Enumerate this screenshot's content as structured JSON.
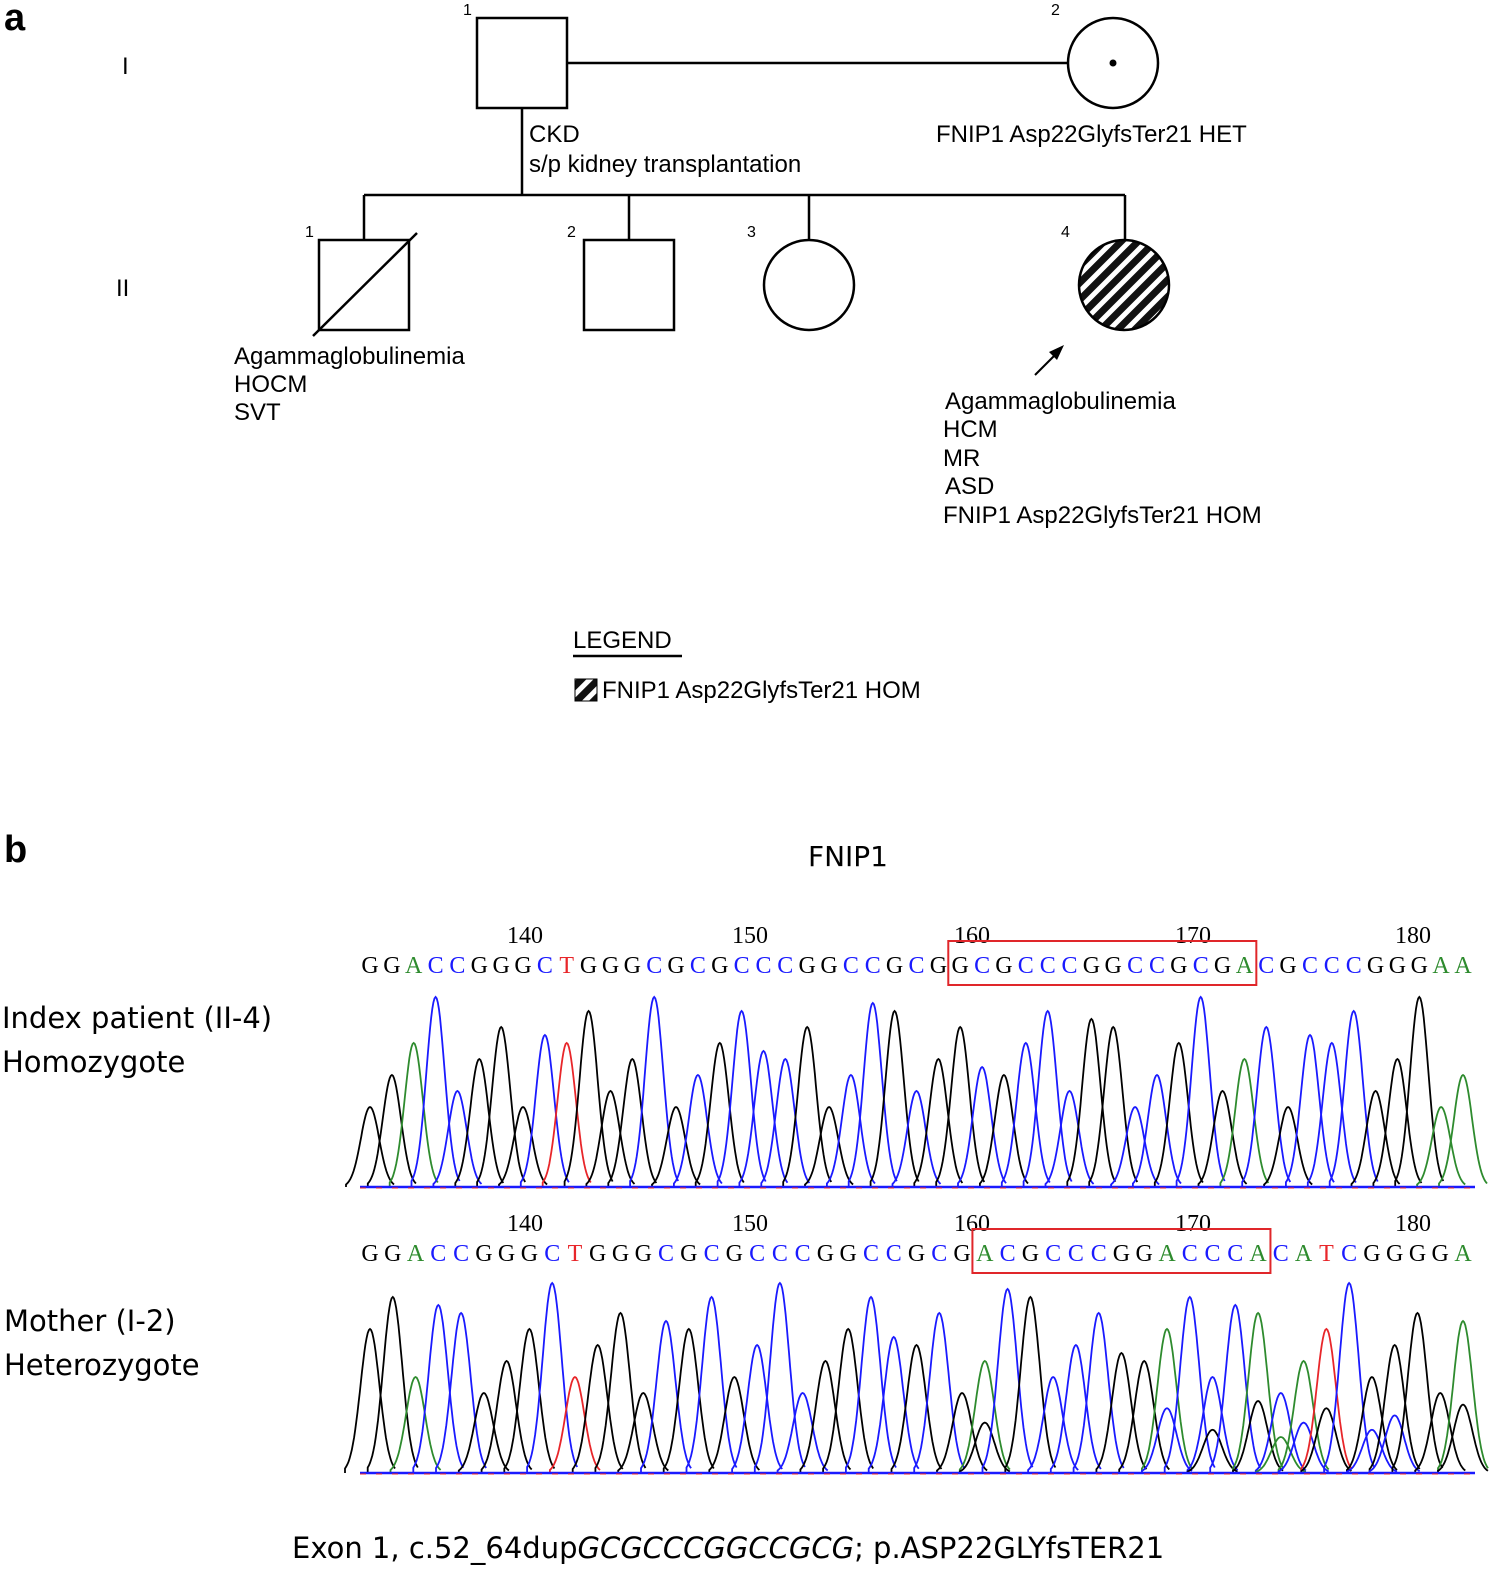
{
  "panel_a": {
    "label": "a",
    "generations": [
      "I",
      "II"
    ],
    "individuals": {
      "I1": {
        "number": "1",
        "notes": [
          "CKD",
          "s/p kidney transplantation"
        ]
      },
      "I2": {
        "number": "2",
        "notes": [
          "FNIP1 Asp22GlyfsTer21 HET"
        ]
      },
      "II1": {
        "number": "1",
        "notes": [
          "Agammaglobulinemia",
          "HOCM",
          "SVT"
        ]
      },
      "II2": {
        "number": "2"
      },
      "II3": {
        "number": "3"
      },
      "II4": {
        "number": "4",
        "notes": [
          "Agammaglobulinemia",
          "HCM",
          "MR",
          "ASD",
          "FNIP1 Asp22GlyfsTer21 HOM"
        ]
      }
    },
    "legend": {
      "title": "LEGEND",
      "item": "FNIP1 Asp22GlyfsTer21 HOM"
    }
  },
  "panel_b": {
    "label": "b",
    "gene": "FNIP1",
    "colors": {
      "A": "#2e8b2e",
      "C": "#1a1aff",
      "G": "#000000",
      "T": "#e8262a",
      "box": "#e0262a"
    },
    "tracks": [
      {
        "title": "Index patient (II-4)",
        "subtitle": "Homozygote",
        "positions": [
          "140",
          "150",
          "160",
          "170",
          "180"
        ],
        "sequence": "GGACCGGGCTGGGCGCGCCCGGCCGCGGCGCCCGGCCGCGACGCCCGGGAA",
        "box_start": 27,
        "box_end": 40
      },
      {
        "title": "Mother (I-2)",
        "subtitle": "Heterozygote",
        "positions": [
          "140",
          "150",
          "160",
          "170",
          "180"
        ],
        "sequence": "GGACCGGGCTGGGCGCGCCCGGCCGCGACGCCCGGACCCACATCGGGGA",
        "box_start": 27,
        "box_end": 39
      }
    ],
    "caption_prefix": "Exon 1, c.52_64dup",
    "caption_dup": "GCGCCCGGCCGCG",
    "caption_suffix": "; p.ASP22GLYfsTER21"
  }
}
